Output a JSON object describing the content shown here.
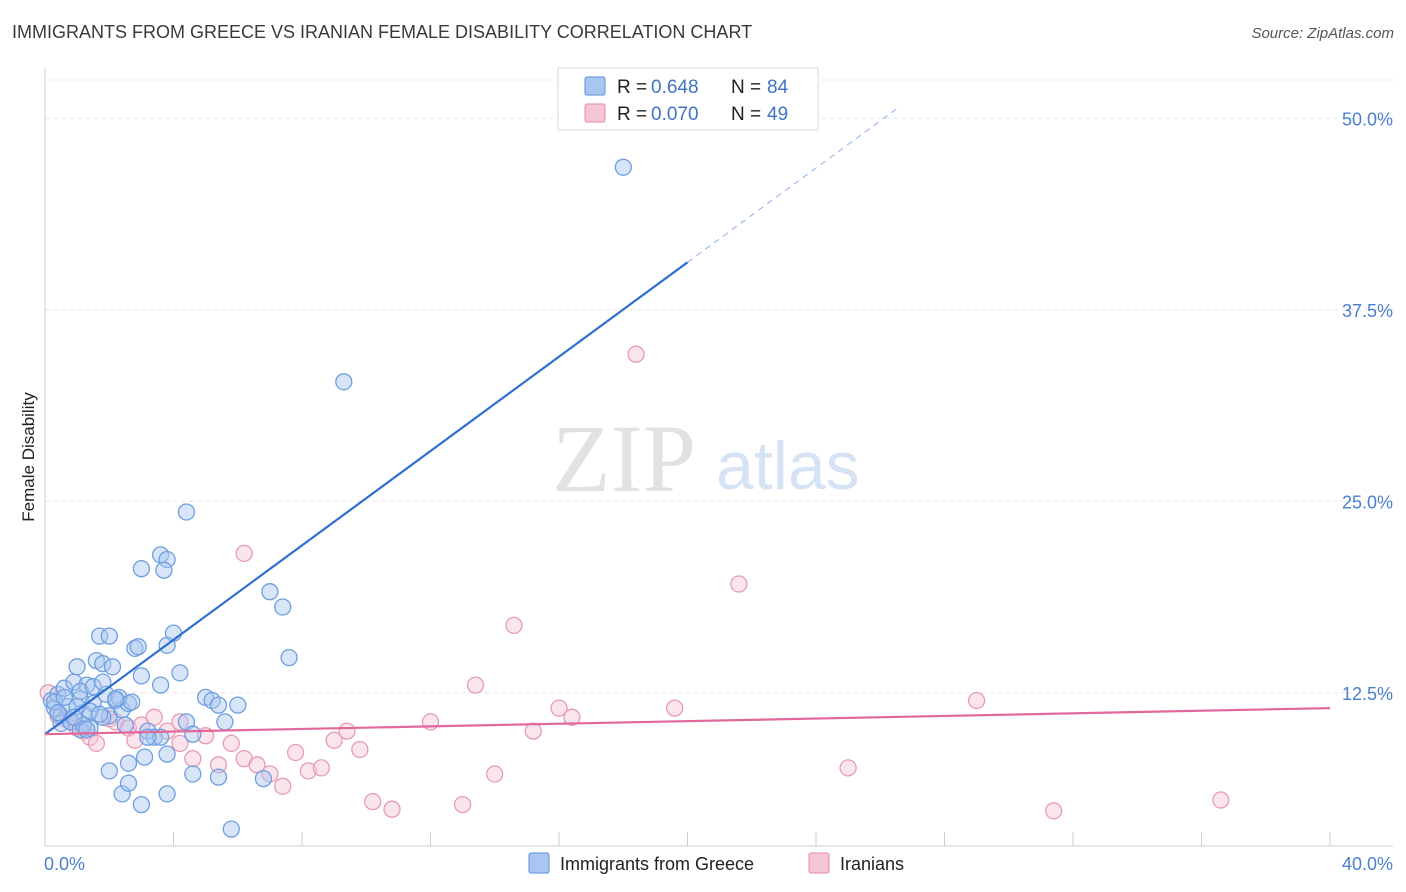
{
  "chart_data": {
    "type": "scatter",
    "title": "IMMIGRANTS FROM GREECE VS IRANIAN FEMALE DISABILITY CORRELATION CHART",
    "source": "Source: ZipAtlas.com",
    "ylabel": "Female Disability",
    "xlim": [
      0,
      40
    ],
    "ylim": [
      2.5,
      52.5
    ],
    "x_tick_labels": [
      "0.0%",
      "40.0%"
    ],
    "y_ticks": [
      12.5,
      25.0,
      37.5,
      50.0
    ],
    "y_tick_labels": [
      "12.5%",
      "25.0%",
      "37.5%",
      "50.0%"
    ],
    "watermark": {
      "part1": "ZIP",
      "part2": "atlas"
    },
    "legend": {
      "entries": [
        {
          "r_label": "R = ",
          "r_value": "0.648",
          "n_label": "N = ",
          "n_value": "84"
        },
        {
          "r_label": "R = ",
          "r_value": "0.070",
          "n_label": "N = ",
          "n_value": "49"
        }
      ]
    },
    "series": [
      {
        "name": "Immigrants from Greece",
        "color": "#6f9fe0",
        "fill": "#a9c6f0",
        "line_color": "#2f6fd0",
        "trend": {
          "x0": 0.0,
          "y0": 9.8,
          "x1": 20.0,
          "y1": 40.6,
          "dash_to_x": 26.5,
          "dash_to_y": 50.6
        },
        "points": [
          [
            0.2,
            12.0
          ],
          [
            0.3,
            11.5
          ],
          [
            0.4,
            12.4
          ],
          [
            0.5,
            11.0
          ],
          [
            0.6,
            12.8
          ],
          [
            0.7,
            11.6
          ],
          [
            0.8,
            10.6
          ],
          [
            0.9,
            13.2
          ],
          [
            1.0,
            14.2
          ],
          [
            1.1,
            12.1
          ],
          [
            1.2,
            11.2
          ],
          [
            1.3,
            13.0
          ],
          [
            1.4,
            10.2
          ],
          [
            1.5,
            11.8
          ],
          [
            1.6,
            14.6
          ],
          [
            1.7,
            16.2
          ],
          [
            1.8,
            14.4
          ],
          [
            1.9,
            12.4
          ],
          [
            2.0,
            11.0
          ],
          [
            2.1,
            14.2
          ],
          [
            2.2,
            12.0
          ],
          [
            2.4,
            11.4
          ],
          [
            2.5,
            10.4
          ],
          [
            2.6,
            11.8
          ],
          [
            2.8,
            15.4
          ],
          [
            3.0,
            13.6
          ],
          [
            3.2,
            10.0
          ],
          [
            3.4,
            9.6
          ],
          [
            3.6,
            13.0
          ],
          [
            3.8,
            15.6
          ],
          [
            4.0,
            16.4
          ],
          [
            4.2,
            13.8
          ],
          [
            4.4,
            10.6
          ],
          [
            4.6,
            9.8
          ],
          [
            5.0,
            12.2
          ],
          [
            5.2,
            12.0
          ],
          [
            5.4,
            11.7
          ],
          [
            5.6,
            10.6
          ],
          [
            6.0,
            11.7
          ],
          [
            1.1,
            12.6
          ],
          [
            2.3,
            12.2
          ],
          [
            1.5,
            12.9
          ],
          [
            2.0,
            16.2
          ],
          [
            1.8,
            13.2
          ],
          [
            2.9,
            15.5
          ],
          [
            2.7,
            11.9
          ],
          [
            3.1,
            8.3
          ],
          [
            3.6,
            9.6
          ],
          [
            2.6,
            7.9
          ],
          [
            3.2,
            9.6
          ],
          [
            0.5,
            10.5
          ],
          [
            0.8,
            10.6
          ],
          [
            1.1,
            10.1
          ],
          [
            1.2,
            10.4
          ],
          [
            1.8,
            10.9
          ],
          [
            2.0,
            7.4
          ],
          [
            2.4,
            5.9
          ],
          [
            2.6,
            6.6
          ],
          [
            3.0,
            5.2
          ],
          [
            3.8,
            5.9
          ],
          [
            3.8,
            8.5
          ],
          [
            4.6,
            7.2
          ],
          [
            5.4,
            7.0
          ],
          [
            5.8,
            3.6
          ],
          [
            7.0,
            19.1
          ],
          [
            7.4,
            18.1
          ],
          [
            7.6,
            14.8
          ],
          [
            3.0,
            20.6
          ],
          [
            3.6,
            21.5
          ],
          [
            3.8,
            21.2
          ],
          [
            3.7,
            20.5
          ],
          [
            4.4,
            24.3
          ],
          [
            9.3,
            32.8
          ],
          [
            18.0,
            46.8
          ],
          [
            6.8,
            6.9
          ],
          [
            0.3,
            11.9
          ],
          [
            0.4,
            11.2
          ],
          [
            0.6,
            12.2
          ],
          [
            1.4,
            11.3
          ],
          [
            1.7,
            11.1
          ],
          [
            2.2,
            12.1
          ],
          [
            1.0,
            11.6
          ],
          [
            0.9,
            10.9
          ],
          [
            1.3,
            10.1
          ]
        ]
      },
      {
        "name": "Iranians",
        "color": "#e89ab4",
        "fill": "#f6c6d6",
        "line_color": "#e2679a",
        "trend": {
          "x0": 0.0,
          "y0": 9.8,
          "x1": 40.0,
          "y1": 11.5
        },
        "points": [
          [
            0.1,
            12.5
          ],
          [
            0.4,
            11.0
          ],
          [
            0.6,
            10.8
          ],
          [
            0.8,
            10.6
          ],
          [
            1.0,
            10.2
          ],
          [
            1.2,
            10.0
          ],
          [
            1.4,
            9.6
          ],
          [
            1.6,
            9.2
          ],
          [
            2.0,
            10.8
          ],
          [
            2.2,
            10.6
          ],
          [
            2.6,
            10.2
          ],
          [
            2.8,
            9.4
          ],
          [
            3.0,
            10.4
          ],
          [
            3.4,
            10.9
          ],
          [
            3.8,
            10.0
          ],
          [
            4.2,
            9.2
          ],
          [
            4.6,
            8.2
          ],
          [
            5.0,
            9.7
          ],
          [
            5.4,
            7.8
          ],
          [
            5.8,
            9.2
          ],
          [
            6.2,
            8.2
          ],
          [
            6.6,
            7.8
          ],
          [
            7.0,
            7.2
          ],
          [
            7.4,
            6.4
          ],
          [
            7.8,
            8.6
          ],
          [
            8.2,
            7.4
          ],
          [
            8.6,
            7.6
          ],
          [
            9.0,
            9.4
          ],
          [
            9.4,
            10.0
          ],
          [
            9.8,
            8.8
          ],
          [
            10.2,
            5.4
          ],
          [
            10.8,
            4.9
          ],
          [
            12.0,
            10.6
          ],
          [
            13.0,
            5.2
          ],
          [
            14.0,
            7.2
          ],
          [
            14.6,
            16.9
          ],
          [
            15.2,
            10.0
          ],
          [
            16.0,
            11.5
          ],
          [
            16.4,
            10.9
          ],
          [
            18.4,
            34.6
          ],
          [
            21.6,
            19.6
          ],
          [
            25.0,
            7.6
          ],
          [
            29.0,
            12.0
          ],
          [
            31.4,
            4.8
          ],
          [
            36.6,
            5.5
          ],
          [
            6.2,
            21.6
          ],
          [
            13.4,
            13.0
          ],
          [
            19.6,
            11.5
          ],
          [
            4.2,
            10.6
          ]
        ]
      }
    ]
  }
}
